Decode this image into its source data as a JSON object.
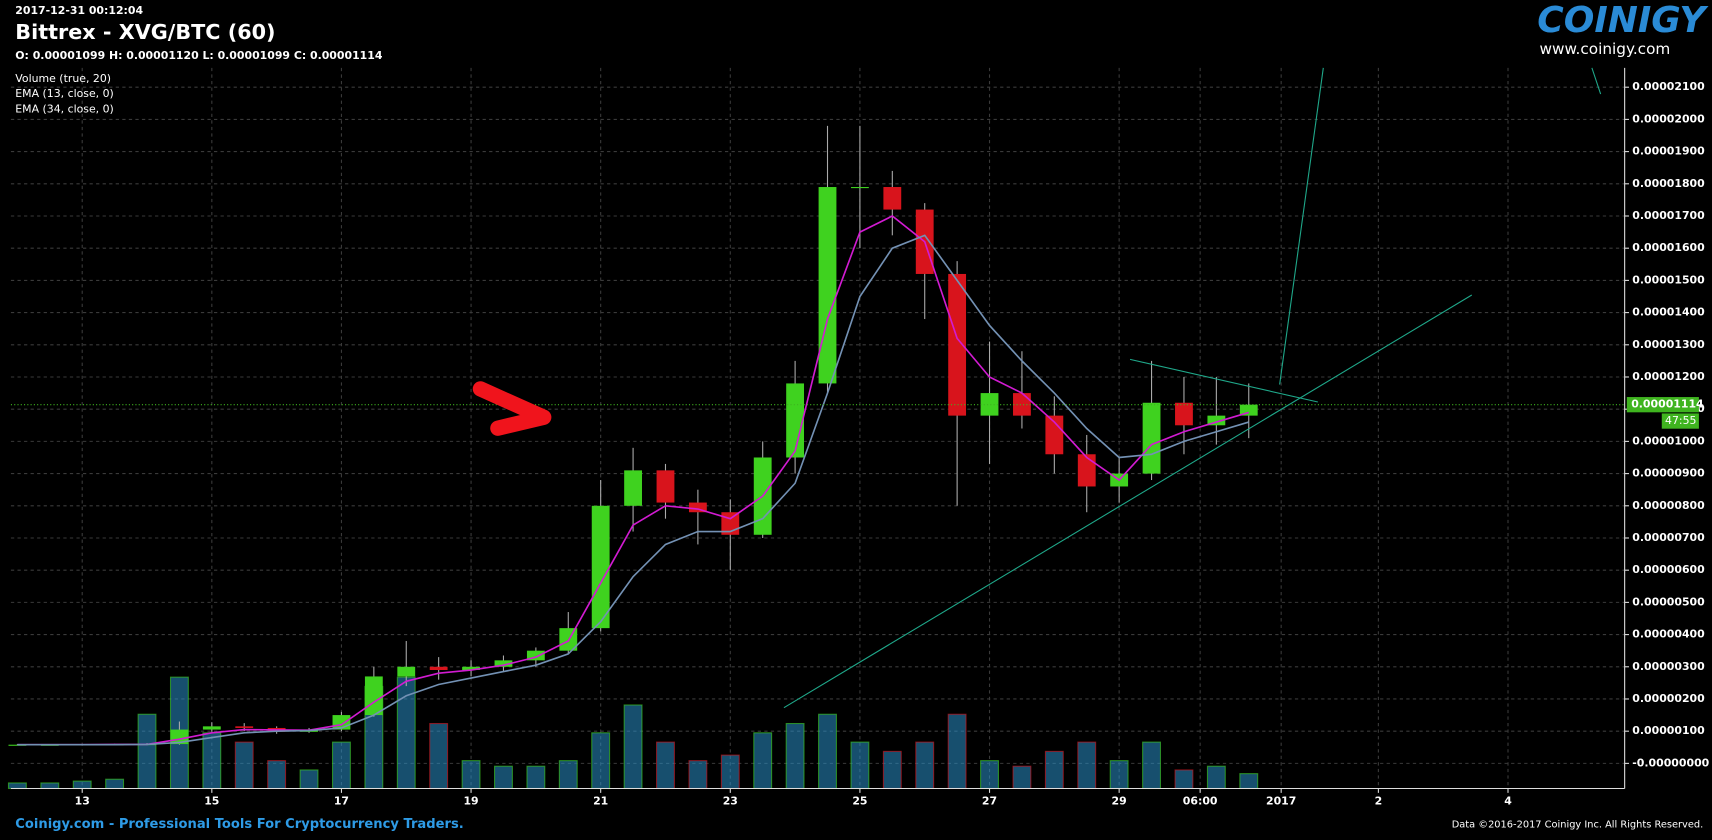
{
  "header": {
    "timestamp": "2017-12-31 00:12:04",
    "title": "Bittrex - XVG/BTC (60)",
    "ohlc": "O: 0.00001099 H: 0.00001120 L: 0.00001099 C: 0.00001114"
  },
  "logo": {
    "name": "COINIGY",
    "url": "www.coinigy.com"
  },
  "footer": {
    "left": "Coinigy.com - Professional Tools For Cryptocurrency Traders.",
    "right": "Data ©2016-2017 Coinigy Inc. All Rights Reserved."
  },
  "chart_data": {
    "type": "candlestick",
    "x": [
      12,
      12.5,
      13,
      13.5,
      14,
      14.5,
      15,
      15.5,
      16,
      16.5,
      17,
      17.5,
      18,
      18.5,
      19,
      19.5,
      20,
      20.5,
      21,
      21.5,
      22,
      22.5,
      23,
      23.5,
      24,
      24.5,
      25,
      25.5,
      26,
      26.5,
      27,
      27.5,
      28,
      28.5,
      29,
      29.5,
      30,
      30.5,
      31
    ],
    "open": [
      5.8e-07,
      5.8e-07,
      5.8e-07,
      5.9e-07,
      5.9e-07,
      6e-07,
      1.05e-06,
      1.15e-06,
      1.1e-06,
      9.8e-07,
      1.05e-06,
      1.5e-06,
      2.7e-06,
      3e-06,
      2.9e-06,
      3e-06,
      3.2e-06,
      3.5e-06,
      4.2e-06,
      8e-06,
      9.1e-06,
      8.1e-06,
      7.8e-06,
      7.1e-06,
      9.5e-06,
      1.18e-05,
      1.79e-05,
      1.79e-05,
      1.72e-05,
      1.52e-05,
      1.08e-05,
      1.15e-05,
      1.08e-05,
      9.6e-06,
      8.6e-06,
      9e-06,
      1.12e-05,
      1.05e-05,
      1.08e-05
    ],
    "high": [
      6e-07,
      6e-07,
      6e-07,
      6.1e-07,
      6.3e-07,
      1.3e-06,
      1.28e-06,
      1.25e-06,
      1.15e-06,
      1.1e-06,
      1.6e-06,
      3e-06,
      3.8e-06,
      3.3e-06,
      3.2e-06,
      3.35e-06,
      3.6e-06,
      4.7e-06,
      8.8e-06,
      9.8e-06,
      9.3e-06,
      8.5e-06,
      8.2e-06,
      1e-05,
      1.25e-05,
      1.98e-05,
      1.98e-05,
      1.84e-05,
      1.74e-05,
      1.56e-05,
      1.31e-05,
      1.28e-05,
      1.14e-05,
      1.02e-05,
      9.5e-06,
      1.25e-05,
      1.2e-05,
      1.2e-05,
      1.18e-05
    ],
    "low": [
      5.6e-07,
      5.6e-07,
      5.7e-07,
      5.7e-07,
      5.7e-07,
      5.8e-07,
      9.8e-07,
      1e-06,
      9.2e-07,
      9.5e-07,
      1e-06,
      1.45e-06,
      2.4e-06,
      2.6e-06,
      2.7e-06,
      2.85e-06,
      3e-06,
      3.4e-06,
      4.1e-06,
      7.2e-06,
      7.6e-06,
      6.8e-06,
      6e-06,
      7e-06,
      9e-06,
      1.15e-05,
      1.6e-05,
      1.64e-05,
      1.38e-05,
      8e-06,
      9.3e-06,
      1.04e-05,
      9e-06,
      7.8e-06,
      8.1e-06,
      8.8e-06,
      9.6e-06,
      9.9e-06,
      1.01e-05
    ],
    "close": [
      5.8e-07,
      5.8e-07,
      5.9e-07,
      5.9e-07,
      6e-07,
      1.05e-06,
      1.15e-06,
      1.1e-06,
      9.8e-07,
      1.05e-06,
      1.5e-06,
      2.7e-06,
      3e-06,
      2.9e-06,
      3e-06,
      3.2e-06,
      3.5e-06,
      4.2e-06,
      8e-06,
      9.1e-06,
      8.1e-06,
      7.8e-06,
      7.1e-06,
      9.5e-06,
      1.18e-05,
      1.79e-05,
      1.79e-05,
      1.72e-05,
      1.52e-05,
      1.08e-05,
      1.15e-05,
      1.08e-05,
      9.6e-06,
      8.6e-06,
      9e-06,
      1.12e-05,
      1.05e-05,
      1.08e-05,
      1.114e-05
    ],
    "up_color": "#3fd21f",
    "down_color": "#d8141c",
    "series": [
      {
        "name": "EMA (13, close, 0)",
        "color": "#d21bd2",
        "values": [
          5.8e-07,
          5.8e-07,
          5.8e-07,
          5.9e-07,
          5.9e-07,
          7.5e-07,
          9.5e-07,
          1.05e-06,
          1.04e-06,
          1.03e-06,
          1.2e-06,
          1.9e-06,
          2.55e-06,
          2.8e-06,
          2.9e-06,
          3.05e-06,
          3.3e-06,
          3.8e-06,
          5.6e-06,
          7.4e-06,
          8e-06,
          7.9e-06,
          7.6e-06,
          8.3e-06,
          9.7e-06,
          1.38e-05,
          1.65e-05,
          1.7e-05,
          1.62e-05,
          1.32e-05,
          1.2e-05,
          1.15e-05,
          1.06e-05,
          9.5e-06,
          8.8e-06,
          9.9e-06,
          1.03e-05,
          1.06e-05,
          1.09e-05
        ]
      },
      {
        "name": "EMA (34, close, 0)",
        "color": "#7391b4",
        "values": [
          5.8e-07,
          5.8e-07,
          5.8e-07,
          5.8e-07,
          5.9e-07,
          6.5e-07,
          8e-07,
          9.5e-07,
          1e-06,
          1.02e-06,
          1.1e-06,
          1.5e-06,
          2.1e-06,
          2.45e-06,
          2.65e-06,
          2.85e-06,
          3.05e-06,
          3.4e-06,
          4.4e-06,
          5.8e-06,
          6.8e-06,
          7.2e-06,
          7.2e-06,
          7.6e-06,
          8.7e-06,
          1.15e-05,
          1.45e-05,
          1.6e-05,
          1.64e-05,
          1.5e-05,
          1.36e-05,
          1.25e-05,
          1.15e-05,
          1.04e-05,
          9.5e-06,
          9.6e-06,
          1e-05,
          1.03e-05,
          1.06e-05
        ]
      }
    ],
    "volume": {
      "name": "Volume (true, 20)",
      "color": "#2a8fc8",
      "ylim": [
        0,
        100
      ],
      "values": [
        3,
        3,
        4,
        5,
        40,
        60,
        30,
        25,
        15,
        10,
        25,
        55,
        60,
        35,
        15,
        12,
        12,
        15,
        30,
        45,
        25,
        15,
        18,
        30,
        35,
        40,
        25,
        20,
        25,
        40,
        15,
        12,
        20,
        25,
        15,
        25,
        10,
        12,
        8
      ]
    },
    "last_price": 1.114e-05,
    "countdown": "47:55",
    "last_color": "#3fb41f",
    "xlim": [
      11.9,
      36.8
    ],
    "xticks": [
      13,
      15,
      17,
      19,
      21,
      23,
      25,
      27,
      29,
      {
        "value": 30.25,
        "label": "06:00"
      },
      {
        "value": 31.5,
        "label": "2017"
      },
      {
        "value": 33,
        "label": "2"
      },
      {
        "value": 35,
        "label": "4"
      }
    ],
    "ylim": [
      -7.8e-07,
      2.16e-05
    ],
    "yticks": [
      {
        "value": 0,
        "label": "-0.00000000"
      },
      {
        "value": 1e-06,
        "label": "0.00000100"
      },
      {
        "value": 2e-06,
        "label": "0.00000200"
      },
      {
        "value": 3e-06,
        "label": "0.00000300"
      },
      {
        "value": 4e-06,
        "label": "0.00000400"
      },
      {
        "value": 5e-06,
        "label": "0.00000500"
      },
      {
        "value": 6e-06,
        "label": "0.00000600"
      },
      {
        "value": 7e-06,
        "label": "0.00000700"
      },
      {
        "value": 8e-06,
        "label": "0.00000800"
      },
      {
        "value": 9e-06,
        "label": "0.00000900"
      },
      {
        "value": 1e-05,
        "label": "0.00001000"
      },
      {
        "value": 1.1e-05,
        "label": "0.00001100"
      },
      {
        "value": 1.2e-05,
        "label": "0.00001200"
      },
      {
        "value": 1.3e-05,
        "label": "0.00001300"
      },
      {
        "value": 1.4e-05,
        "label": "0.00001400"
      },
      {
        "value": 1.5e-05,
        "label": "0.00001500"
      },
      {
        "value": 1.6e-05,
        "label": "0.00001600"
      },
      {
        "value": 1.7e-05,
        "label": "0.00001700"
      },
      {
        "value": 1.8e-05,
        "label": "0.00001800"
      },
      {
        "value": 1.9e-05,
        "label": "0.00001900"
      },
      {
        "value": 2e-05,
        "label": "0.00002000"
      },
      {
        "value": 2.1e-05,
        "label": "0.00002100"
      }
    ],
    "grid": true
  }
}
